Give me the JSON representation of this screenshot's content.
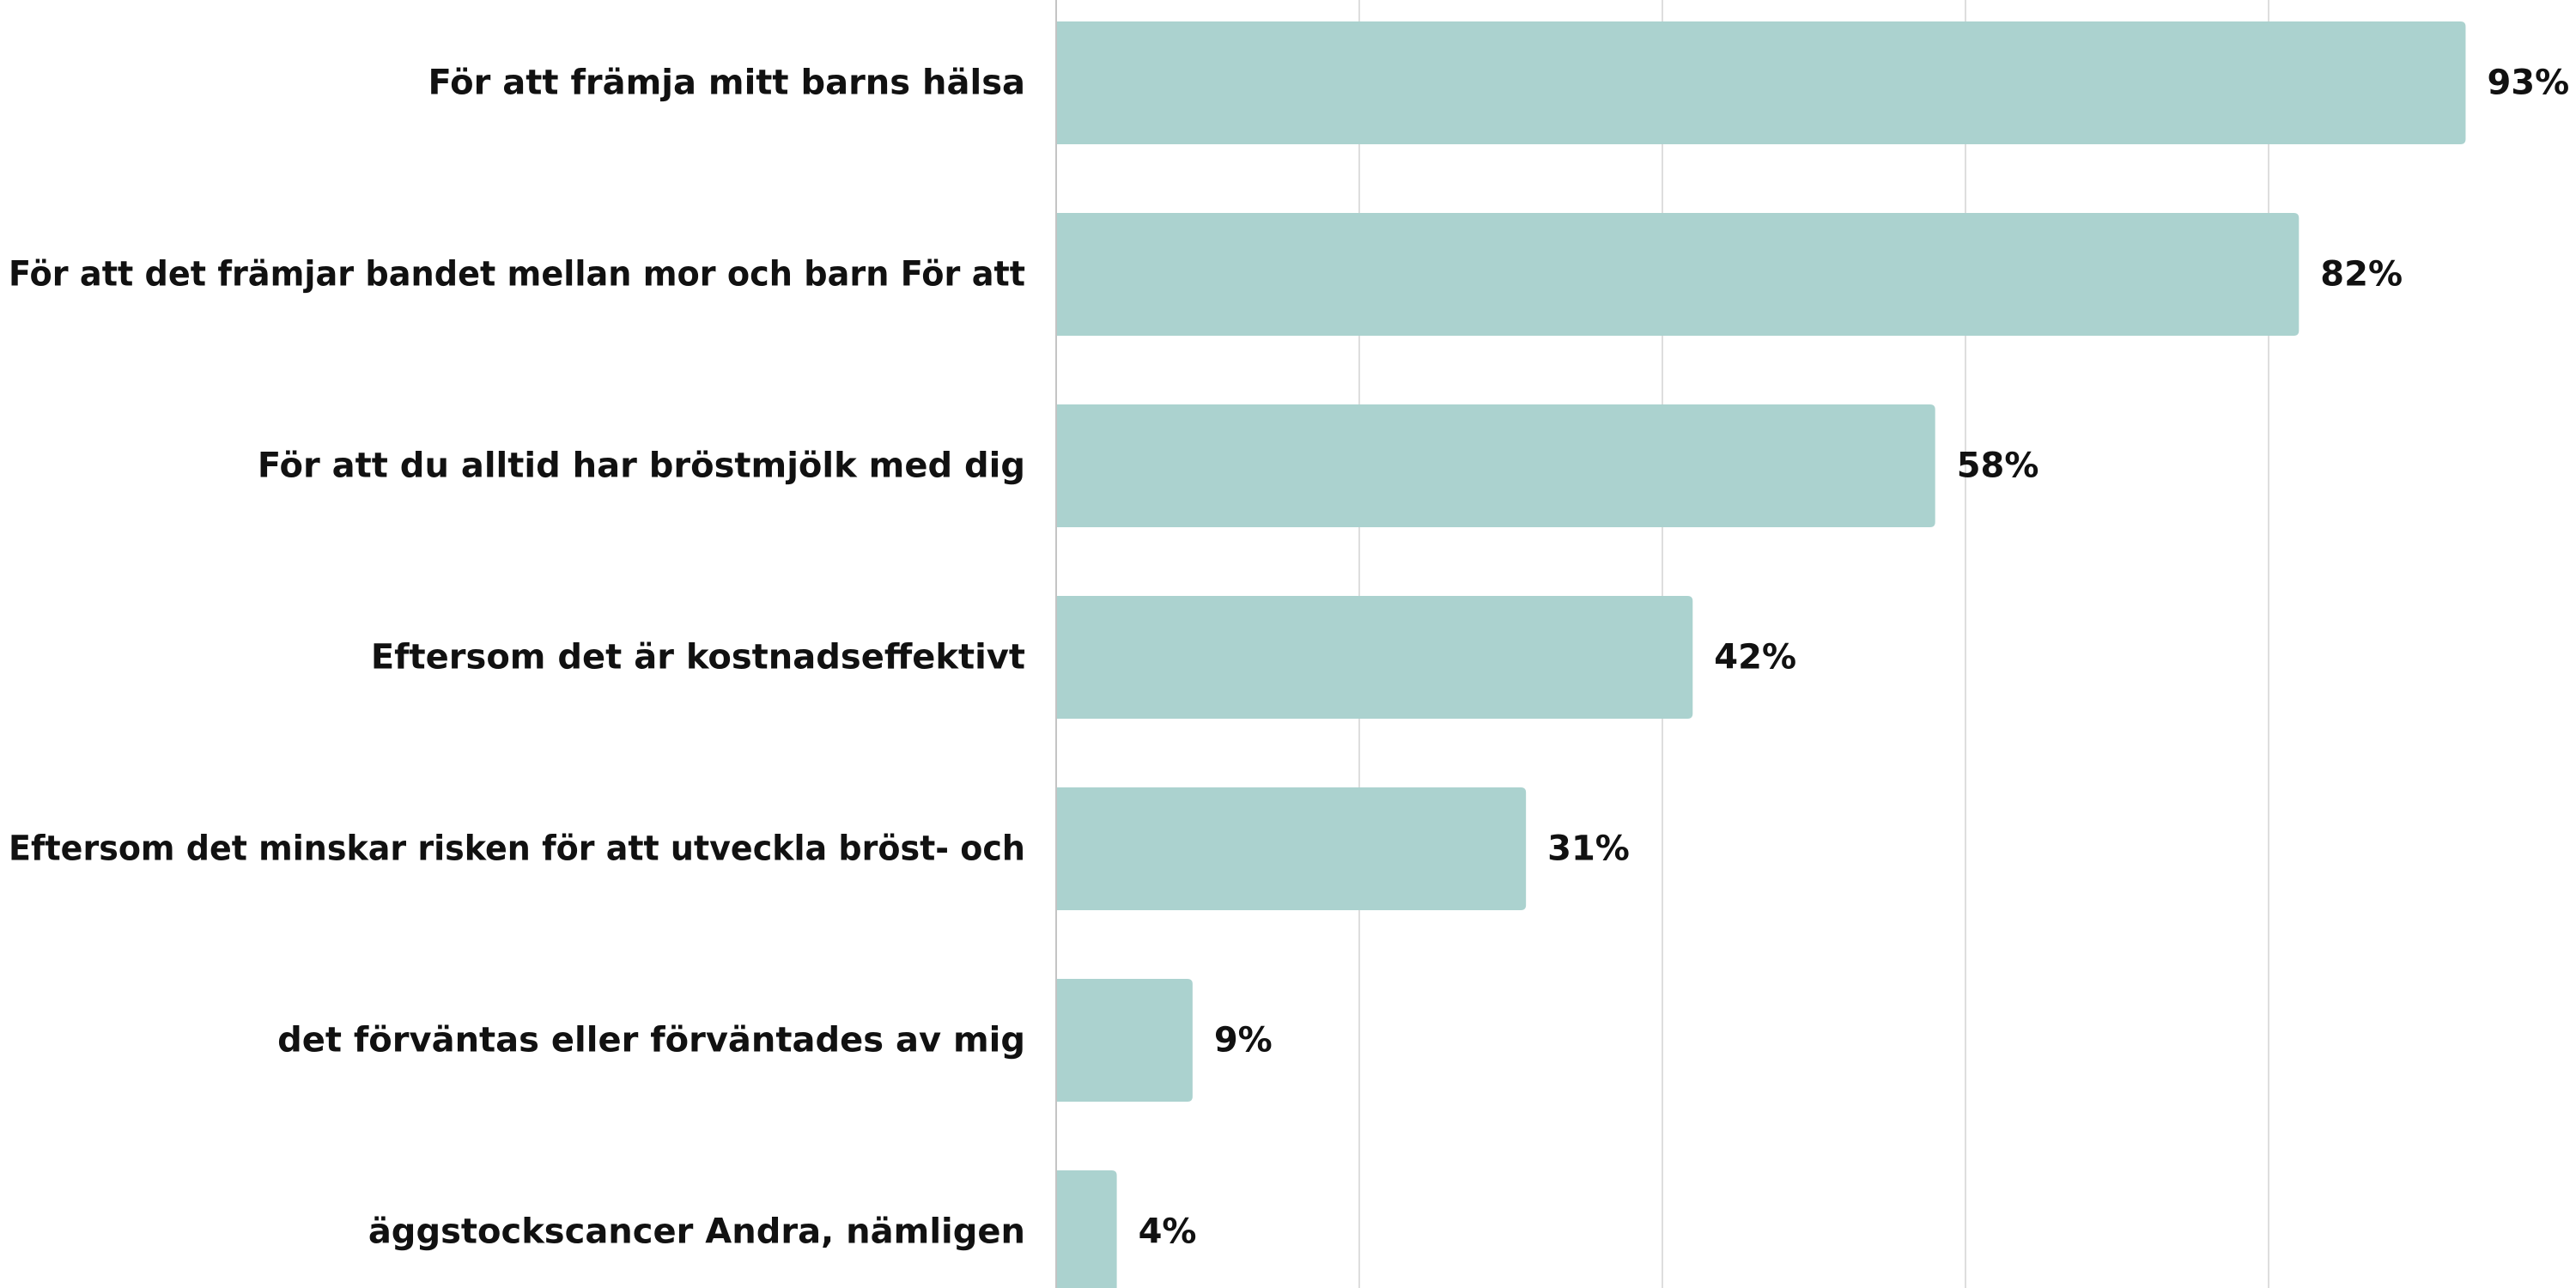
{
  "chart_data": {
    "type": "bar",
    "orientation": "horizontal",
    "categories": [
      "För att främja mitt barns hälsa",
      "För att det främjar bandet mellan mor och barn För att",
      "För att du alltid har bröstmjölk med dig",
      "Eftersom det är kostnadseffektivt",
      "Eftersom det minskar risken för att utveckla bröst- och",
      "det förväntas eller förväntades av mig",
      "äggstockscancer Andra, nämligen"
    ],
    "values": [
      93,
      82,
      58,
      42,
      31,
      9,
      4
    ],
    "value_labels": [
      "93%",
      "82%",
      "58%",
      "42%",
      "31%",
      "9%",
      "4%"
    ],
    "xlim": [
      0,
      100
    ],
    "grid": true,
    "title": "",
    "xlabel": "",
    "ylabel": ""
  },
  "colors": {
    "bar": "#abd2cf",
    "grid": "#dedede",
    "axis": "#c4c4c4",
    "text": "#111111"
  }
}
